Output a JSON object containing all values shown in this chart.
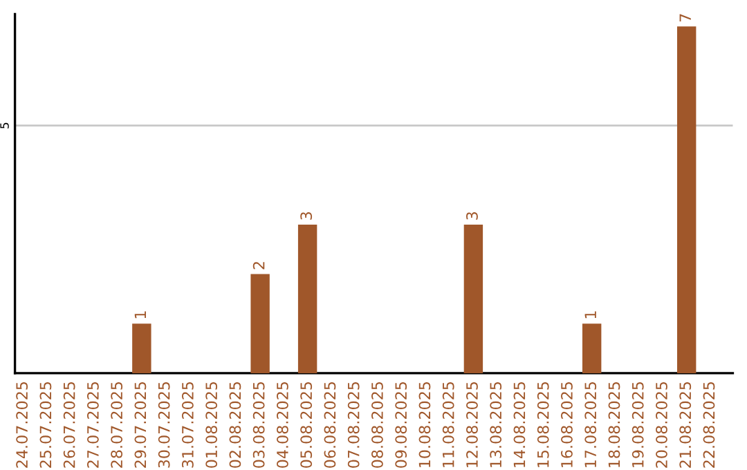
{
  "chart_data": {
    "type": "bar",
    "categories": [
      "24.07.2025",
      "25.07.2025",
      "26.07.2025",
      "27.07.2025",
      "28.07.2025",
      "29.07.2025",
      "30.07.2025",
      "31.07.2025",
      "01.08.2025",
      "02.08.2025",
      "03.08.2025",
      "04.08.2025",
      "05.08.2025",
      "06.08.2025",
      "07.08.2025",
      "08.08.2025",
      "09.08.2025",
      "10.08.2025",
      "11.08.2025",
      "12.08.2025",
      "13.08.2025",
      "14.08.2025",
      "15.08.2025",
      "16.08.2025",
      "17.08.2025",
      "18.08.2025",
      "19.08.2025",
      "20.08.2025",
      "21.08.2025",
      "22.08.2025"
    ],
    "values": [
      0,
      0,
      0,
      0,
      0,
      1,
      0,
      0,
      0,
      0,
      2,
      0,
      3,
      0,
      0,
      0,
      0,
      0,
      0,
      3,
      0,
      0,
      0,
      0,
      1,
      0,
      0,
      0,
      7,
      0
    ],
    "value_labels": [
      null,
      null,
      null,
      null,
      null,
      "1",
      null,
      null,
      null,
      null,
      "2",
      null,
      "3",
      null,
      null,
      null,
      null,
      null,
      null,
      "3",
      null,
      null,
      null,
      null,
      "1",
      null,
      null,
      null,
      "7",
      null
    ],
    "color": "#a0572a",
    "ylim": [
      0,
      7.25
    ],
    "yticks": [
      5
    ],
    "grid": "y"
  }
}
